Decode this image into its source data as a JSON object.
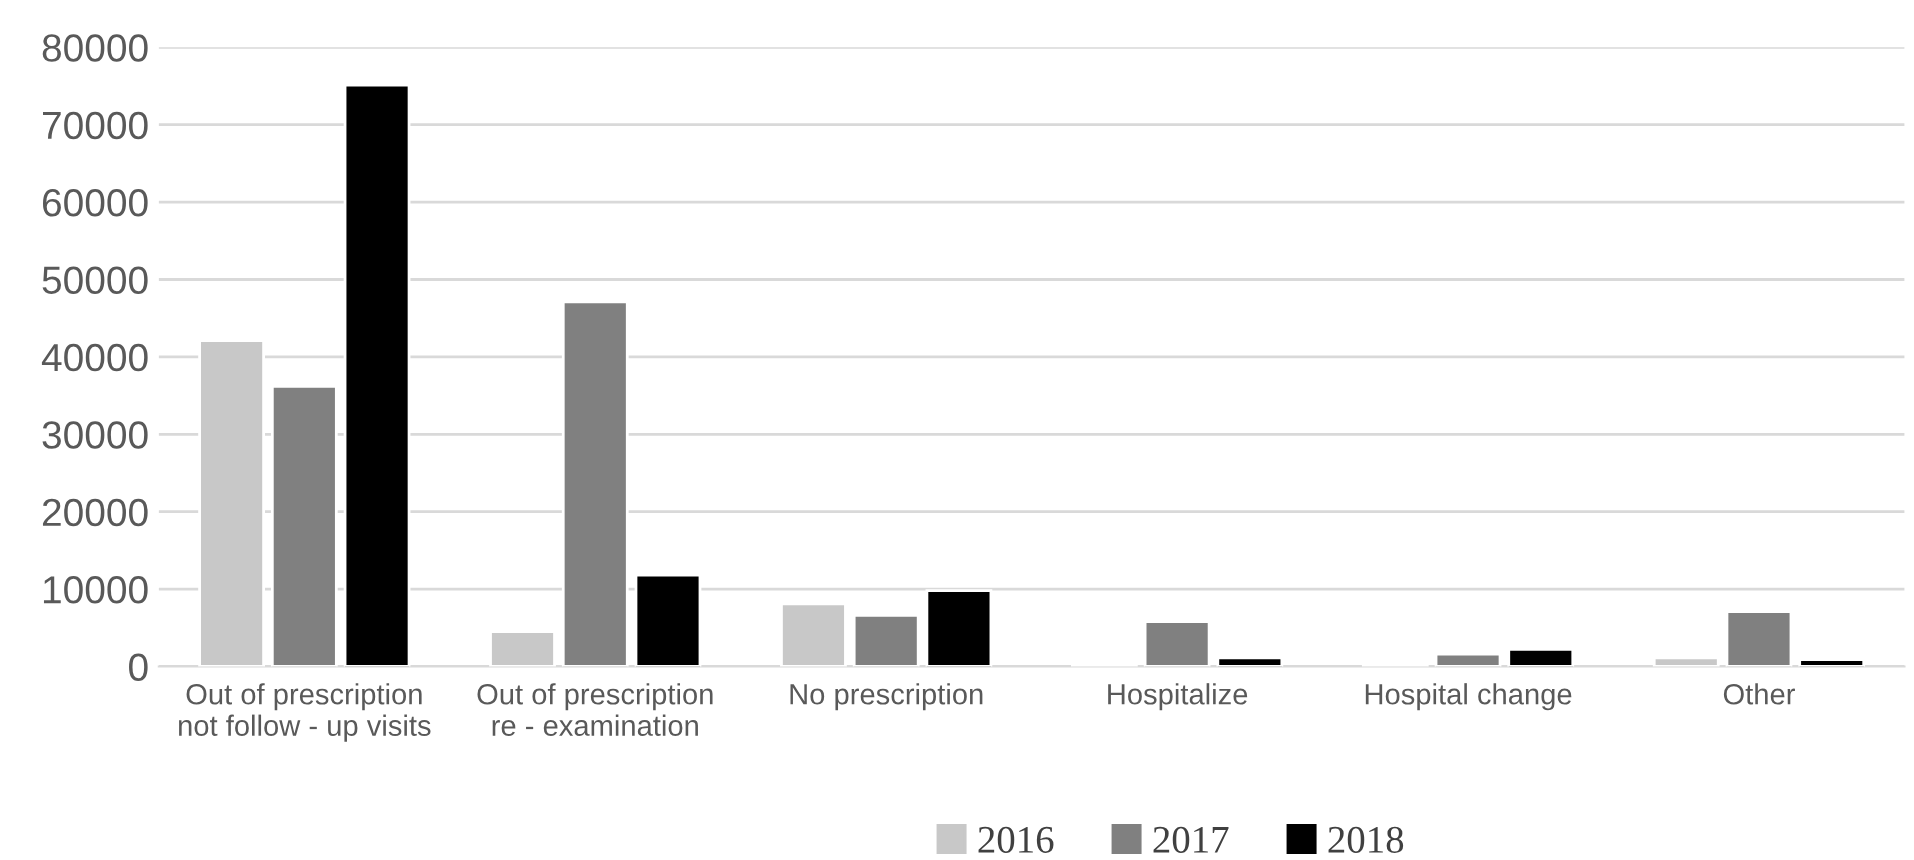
{
  "chart_data": {
    "type": "bar",
    "categories": [
      "Out of prescription\nnot follow - up visits",
      "Out of prescription\nre - examination",
      "No prescription",
      "Hospitalize",
      "Hospital change",
      "Other"
    ],
    "series": [
      {
        "name": "2016",
        "color": "#c8c8c8",
        "values": [
          42100,
          4500,
          8100,
          350,
          350,
          1100
        ]
      },
      {
        "name": "2017",
        "color": "#808080",
        "values": [
          36200,
          47100,
          6600,
          5800,
          1600,
          7100
        ]
      },
      {
        "name": "2018",
        "color": "#000000",
        "values": [
          75100,
          11800,
          9800,
          1100,
          2200,
          900
        ]
      }
    ],
    "ylim": [
      0,
      80000
    ],
    "yticks": [
      0,
      10000,
      20000,
      30000,
      40000,
      50000,
      60000,
      70000,
      80000
    ],
    "grid": "y",
    "legend": "bottom"
  }
}
